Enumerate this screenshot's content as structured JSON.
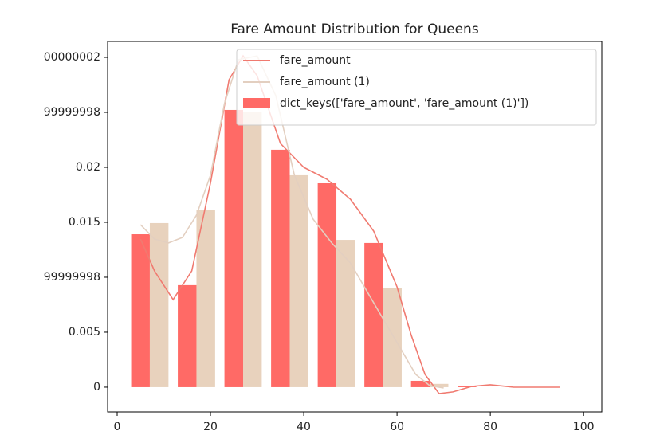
{
  "chart_data": {
    "type": "histogram",
    "title": "Fare Amount Distribution for Queens",
    "bins": [
      2,
      12,
      22,
      32,
      42,
      52,
      62,
      72,
      82,
      92,
      102
    ],
    "series": [
      {
        "name": "dict_keys(['fare_amount', 'fare_amount (1)'])",
        "color": "#ff6a66",
        "values": [
          0.01391,
          0.00928,
          0.02522,
          0.0216,
          0.01855,
          0.01312,
          0.00058,
          0.0001,
          0,
          0
        ]
      },
      {
        "color": "#e8d2bd",
        "values": [
          0.01493,
          0.01609,
          0.025,
          0.01928,
          0.0134,
          0.00899,
          0.0003,
          0,
          0,
          0
        ]
      }
    ],
    "lines": [
      {
        "name": "fare_amount",
        "color": "#f07a70",
        "x": [
          5,
          8,
          12,
          16,
          20,
          24,
          27,
          30,
          35,
          40,
          45,
          50,
          55,
          60,
          63,
          66,
          69,
          72,
          76,
          80,
          85,
          90,
          95
        ],
        "values": [
          0.01348,
          0.01058,
          0.00797,
          0.01058,
          0.01855,
          0.02797,
          0.03014,
          0.02833,
          0.02217,
          0.02,
          0.01891,
          0.0171,
          0.0142,
          0.00913,
          0.00478,
          0.00116,
          -0.00058,
          -0.00043,
          7e-05,
          0.00022,
          0,
          0,
          0
        ]
      },
      {
        "name": "fare_amount (1)",
        "color": "#e3cfc0",
        "x": [
          5,
          8,
          11,
          14,
          17,
          20,
          23,
          26,
          30,
          34,
          38,
          42,
          46,
          50,
          55,
          60,
          64,
          67,
          70
        ],
        "values": [
          0.01478,
          0.01348,
          0.01312,
          0.01362,
          0.01565,
          0.01927,
          0.0258,
          0.02978,
          0.03014,
          0.02652,
          0.01927,
          0.01529,
          0.01312,
          0.0113,
          0.00768,
          0.00406,
          0.00116,
          0.00014,
          -7e-05
        ]
      }
    ],
    "xlim": [
      -2.05,
      103.9
    ],
    "ylim": [
      -0.00225,
      0.03145
    ],
    "xticks": [
      0,
      20,
      40,
      60,
      80,
      100
    ],
    "yticks": [
      0,
      0.005,
      {
        "value": 0.01,
        "label": "99999998"
      },
      0.015,
      0.02,
      {
        "value": 0.025,
        "label": "99999998"
      },
      {
        "value": 0.03,
        "label": "00000002"
      }
    ],
    "legend": "upper right"
  }
}
